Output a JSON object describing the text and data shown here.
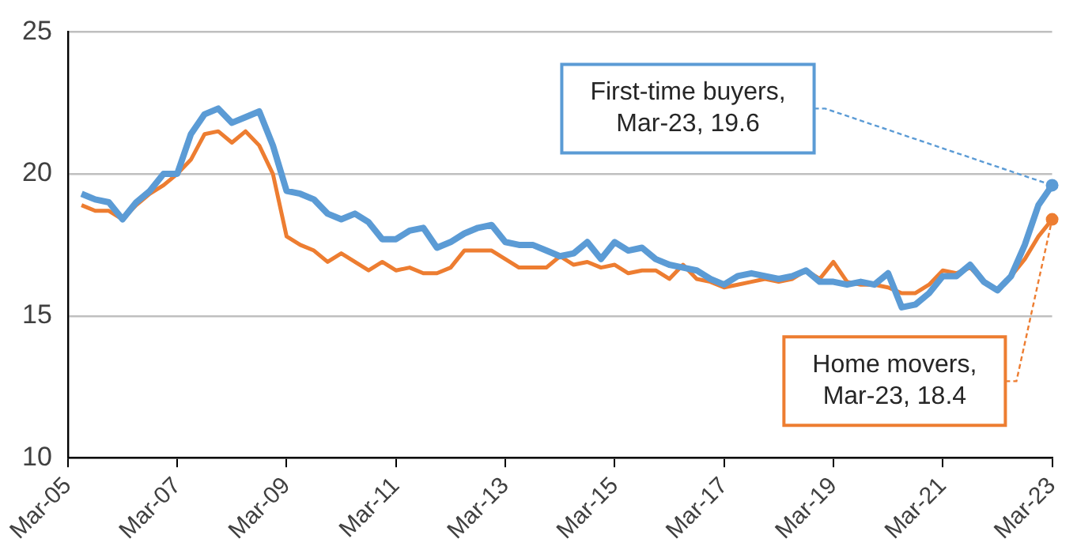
{
  "chart_data": {
    "type": "line",
    "x": [
      "2005-06",
      "2005-09",
      "2005-12",
      "2006-03",
      "2006-06",
      "2006-09",
      "2006-12",
      "2007-03",
      "2007-06",
      "2007-09",
      "2007-12",
      "2008-03",
      "2008-06",
      "2008-09",
      "2008-12",
      "2009-03",
      "2009-06",
      "2009-09",
      "2009-12",
      "2010-03",
      "2010-06",
      "2010-09",
      "2010-12",
      "2011-03",
      "2011-06",
      "2011-09",
      "2011-12",
      "2012-03",
      "2012-06",
      "2012-09",
      "2012-12",
      "2013-03",
      "2013-06",
      "2013-09",
      "2013-12",
      "2014-03",
      "2014-06",
      "2014-09",
      "2014-12",
      "2015-03",
      "2015-06",
      "2015-09",
      "2015-12",
      "2016-03",
      "2016-06",
      "2016-09",
      "2016-12",
      "2017-03",
      "2017-06",
      "2017-09",
      "2017-12",
      "2018-03",
      "2018-06",
      "2018-09",
      "2018-12",
      "2019-03",
      "2019-06",
      "2019-09",
      "2019-12",
      "2020-03",
      "2020-06",
      "2020-09",
      "2020-12",
      "2021-03",
      "2021-06",
      "2021-09",
      "2021-12",
      "2022-03",
      "2022-06",
      "2022-09",
      "2022-12",
      "2023-03"
    ],
    "series": [
      {
        "color": "#5b9bd5",
        "values": [
          19.3,
          19.1,
          19.0,
          18.4,
          19.0,
          19.4,
          20.0,
          20.0,
          21.4,
          22.1,
          22.3,
          21.8,
          22.0,
          22.2,
          21.0,
          19.4,
          19.3,
          19.1,
          18.6,
          18.4,
          18.6,
          18.3,
          17.7,
          17.7,
          18.0,
          18.1,
          17.4,
          17.6,
          17.9,
          18.1,
          18.2,
          17.6,
          17.5,
          17.5,
          17.3,
          17.1,
          17.2,
          17.6,
          17.0,
          17.6,
          17.3,
          17.4,
          17.0,
          16.8,
          16.7,
          16.6,
          16.3,
          16.1,
          16.4,
          16.5,
          16.4,
          16.3,
          16.4,
          16.6,
          16.2,
          16.2,
          16.1,
          16.2,
          16.1,
          16.5,
          15.3,
          15.4,
          15.8,
          16.4,
          16.4,
          16.8,
          16.2,
          15.9,
          16.4,
          17.5,
          18.9,
          19.6
        ]
      },
      {
        "color": "#ed7d31",
        "values": [
          18.9,
          18.7,
          18.7,
          18.4,
          18.9,
          19.3,
          19.6,
          20.0,
          20.5,
          21.4,
          21.5,
          21.1,
          21.5,
          21.0,
          20.0,
          17.8,
          17.5,
          17.3,
          16.9,
          17.2,
          16.9,
          16.6,
          16.9,
          16.6,
          16.7,
          16.5,
          16.5,
          16.7,
          17.3,
          17.3,
          17.3,
          17.0,
          16.7,
          16.7,
          16.7,
          17.1,
          16.8,
          16.9,
          16.7,
          16.8,
          16.5,
          16.6,
          16.6,
          16.3,
          16.8,
          16.3,
          16.2,
          16.0,
          16.1,
          16.2,
          16.3,
          16.2,
          16.3,
          16.6,
          16.3,
          16.9,
          16.2,
          16.1,
          16.1,
          16.0,
          15.8,
          15.8,
          16.1,
          16.6,
          16.5,
          16.7,
          16.2,
          15.9,
          16.4,
          17.0,
          17.8,
          18.4
        ]
      }
    ],
    "xlim": [
      "2005-03",
      "2023-03"
    ],
    "xticks": [
      {
        "value": "2005-03",
        "label": "Mar-05"
      },
      {
        "value": "2007-03",
        "label": "Mar-07"
      },
      {
        "value": "2009-03",
        "label": "Mar-09"
      },
      {
        "value": "2011-03",
        "label": "Mar-11"
      },
      {
        "value": "2013-03",
        "label": "Mar-13"
      },
      {
        "value": "2015-03",
        "label": "Mar-15"
      },
      {
        "value": "2017-03",
        "label": "Mar-17"
      },
      {
        "value": "2019-03",
        "label": "Mar-19"
      },
      {
        "value": "2021-03",
        "label": "Mar-21"
      },
      {
        "value": "2023-03",
        "label": "Mar-23"
      }
    ],
    "ylim": [
      10,
      25
    ],
    "yticks": [
      10,
      15,
      20,
      25
    ],
    "grid": "y",
    "legend": false,
    "annotations": [
      {
        "text": "First-time buyers,\nMar-23, 19.6",
        "x": "2023-03",
        "y": 19.6
      },
      {
        "text": "Home movers,\nMar-23, 18.4",
        "x": "2023-03",
        "y": 18.4
      }
    ]
  }
}
